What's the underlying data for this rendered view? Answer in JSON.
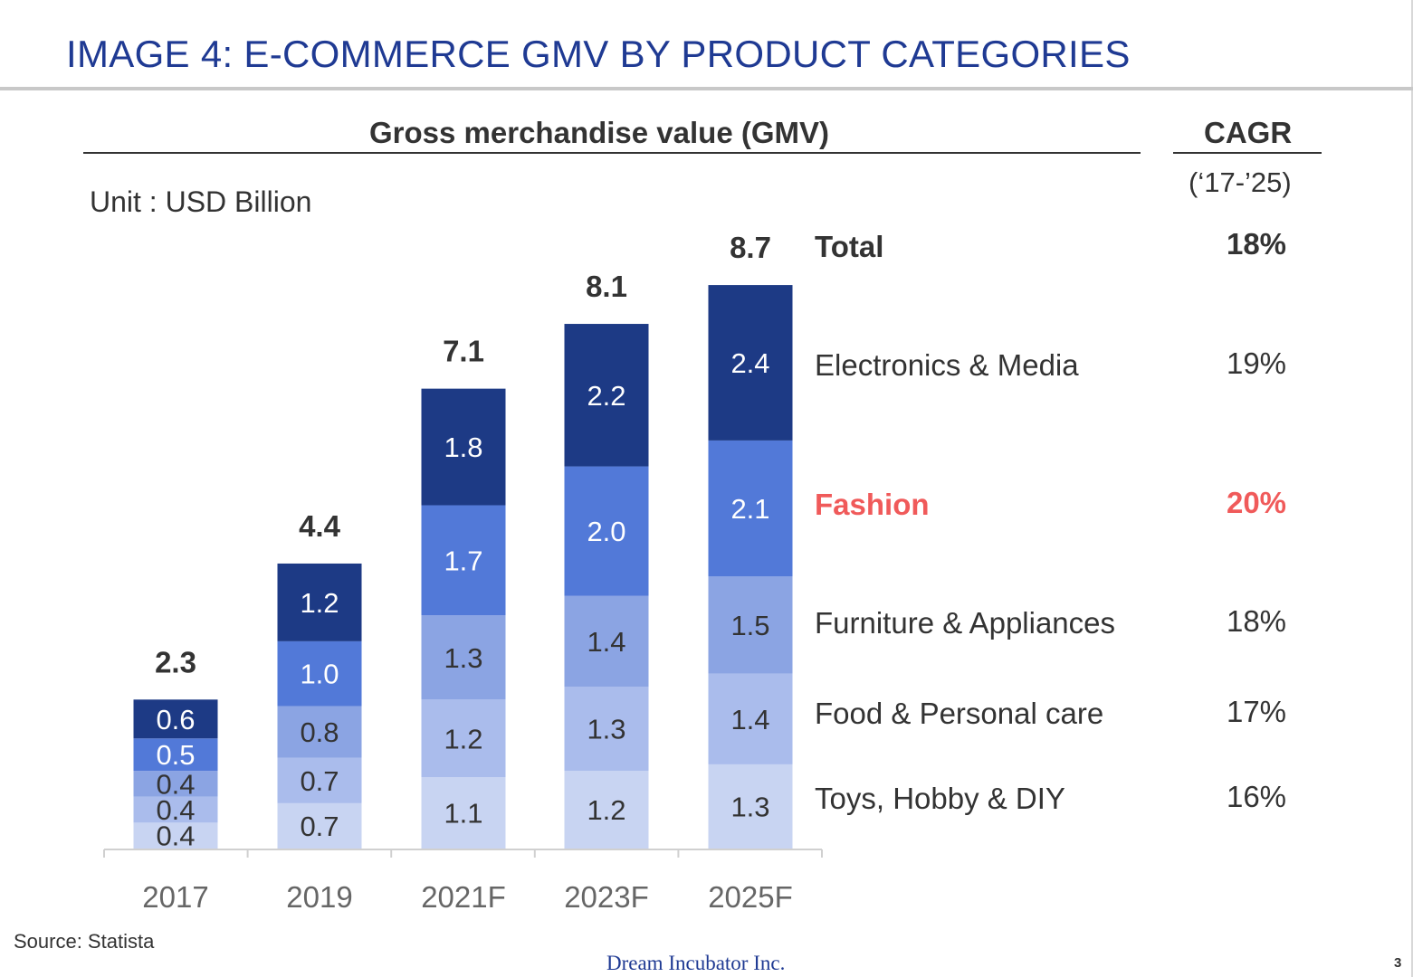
{
  "slide": {
    "title": "IMAGE 4: E-COMMERCE GMV BY PRODUCT CATEGORIES",
    "section_header": "Gross merchandise value (GMV)",
    "cagr_header": "CAGR",
    "cagr_period": "(‘17-’25)",
    "unit": "Unit : USD Billion",
    "source": "Source: Statista",
    "company": "Dream Incubator Inc.",
    "page_number": "3"
  },
  "colors": {
    "toys": "#c8d4f2",
    "food": "#aabcec",
    "furniture": "#8ba4e3",
    "fashion": "#5279d8",
    "electronics": "#1d3a85",
    "highlight": "#f05a5a",
    "title": "#1f3a93"
  },
  "chart_data": {
    "type": "bar",
    "stacked": true,
    "categories": [
      "2017",
      "2019",
      "2021F",
      "2023F",
      "2025F"
    ],
    "series": [
      {
        "name": "Toys, Hobby & DIY",
        "values": [
          0.4,
          0.7,
          1.1,
          1.2,
          1.3
        ],
        "cagr": "16%",
        "color_key": "toys"
      },
      {
        "name": "Food & Personal care",
        "values": [
          0.4,
          0.7,
          1.2,
          1.3,
          1.4
        ],
        "cagr": "17%",
        "color_key": "food"
      },
      {
        "name": "Furniture & Appliances",
        "values": [
          0.4,
          0.8,
          1.3,
          1.4,
          1.5
        ],
        "cagr": "18%",
        "color_key": "furniture"
      },
      {
        "name": "Fashion",
        "values": [
          0.5,
          1.0,
          1.7,
          2.0,
          2.1
        ],
        "cagr": "20%",
        "color_key": "fashion",
        "highlight": true
      },
      {
        "name": "Electronics & Media",
        "values": [
          0.6,
          1.2,
          1.8,
          2.2,
          2.4
        ],
        "cagr": "19%",
        "color_key": "electronics"
      }
    ],
    "totals": [
      2.3,
      4.4,
      7.1,
      8.1,
      8.7
    ],
    "total_label": "Total",
    "total_cagr": "18%",
    "unit": "USD Billion",
    "legend_position": "right",
    "grid": false
  }
}
